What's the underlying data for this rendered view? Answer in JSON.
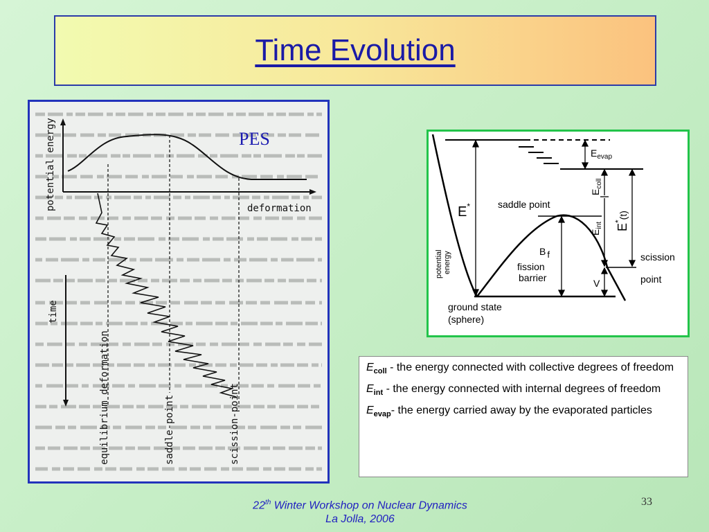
{
  "slide": {
    "title": "Time Evolution",
    "page_number": "33"
  },
  "pes_figure": {
    "label": "PES",
    "y_axis": "potential energy",
    "x_axis": "deformation",
    "time_axis": "time",
    "markers": [
      "equilibrium deformation",
      "saddle-point",
      "scission-point"
    ]
  },
  "fission_figure": {
    "labels": {
      "e_star": "E",
      "e_star_sup": "*",
      "e_evap": "E",
      "e_evap_sub": "evap",
      "e_coll": "E",
      "e_coll_sub": "coll",
      "e_int": "E",
      "e_int_sub": "int",
      "e_star_t": "E",
      "e_star_t_sup": "*",
      "e_star_t_arg": "(t)",
      "saddle_point": "saddle point",
      "b": "B",
      "b_sub": "f",
      "fission": "fission",
      "barrier": "barrier",
      "v": "V",
      "scission": "scission",
      "point": "point",
      "ground_state": "ground state",
      "sphere": "(sphere)",
      "potential": "potential",
      "energy": "energy"
    }
  },
  "definitions": [
    {
      "sym": "E",
      "sub": "coll",
      "text": " - the energy connected with collective degrees of freedom"
    },
    {
      "sym": "E",
      "sub": "int",
      "text": " - the energy connected with internal degrees of freedom"
    },
    {
      "sym": "E",
      "sub": "evap",
      "text": "- the energy carried away by the evaporated particles"
    }
  ],
  "footer": {
    "line1_prefix": "22",
    "line1_sup": "th",
    "line1_rest": " Winter Workshop on Nuclear Dynamics",
    "line2": "La Jolla, 2006"
  },
  "colors": {
    "title_text": "#1a1aa6",
    "title_border": "#2b3aa8",
    "pes_border": "#2233bb",
    "fission_border": "#22c44a",
    "footer_text": "#2020c0"
  }
}
